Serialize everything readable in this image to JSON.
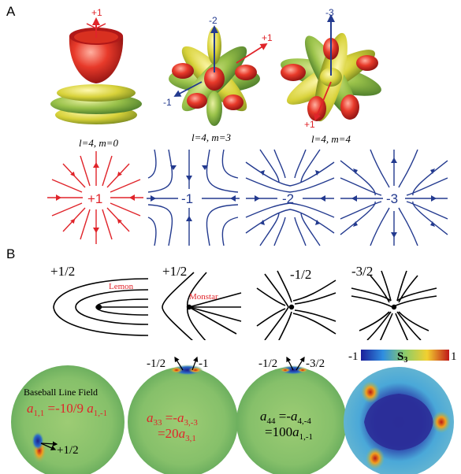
{
  "panels": {
    "a": "A",
    "b": "B"
  },
  "harmonics": [
    {
      "label": "l=4, m=0",
      "charge": "+1"
    },
    {
      "label": "l=4, m=3",
      "charges": [
        "-2",
        "+1",
        "-1"
      ]
    },
    {
      "label": "l=4, m=4",
      "charges": [
        "-3",
        "+1"
      ]
    }
  ],
  "fields": [
    "+1",
    "-1",
    "-2",
    "-3"
  ],
  "defects": [
    {
      "charge": "+1/2",
      "name": "Lemon"
    },
    {
      "charge": "+1/2",
      "name": "Monstar"
    },
    {
      "charge": "-1/2"
    },
    {
      "charge": "-3/2"
    }
  ],
  "spheres": {
    "s1": {
      "title": "Baseball Line Field",
      "coef": "a",
      "coef_sub": "1,1",
      "eq": " =-10/9 ",
      "coef2": "a",
      "coef2_sub": "1,-1",
      "defect": "+1/2"
    },
    "s2": {
      "charges": [
        "-1/2",
        "-1"
      ],
      "line1_a": "a",
      "line1_a_sub": "33",
      "line1_mid": " =-",
      "line1_b": "a",
      "line1_b_sub": "3,-3",
      "line2_pre": "=20",
      "line2_a": "a",
      "line2_a_sub": "3,1"
    },
    "s3": {
      "charges": [
        "-1/2",
        "-3/2"
      ],
      "line1_a": "a",
      "line1_a_sub": "44",
      "line1_mid": " =-",
      "line1_b": "a",
      "line1_b_sub": "4,-4",
      "line2_pre": "=100",
      "line2_a": "a",
      "line2_a_sub": "1,-1"
    },
    "s4": {
      "colorbar_min": "-1",
      "colorbar_label": "S",
      "colorbar_sub": "3",
      "colorbar_max": "1"
    }
  },
  "colors": {
    "red": "#e0242a",
    "blue": "#233a8f",
    "sphere_green": "#8cc46a",
    "s3_blue": "#2a2f9a"
  }
}
